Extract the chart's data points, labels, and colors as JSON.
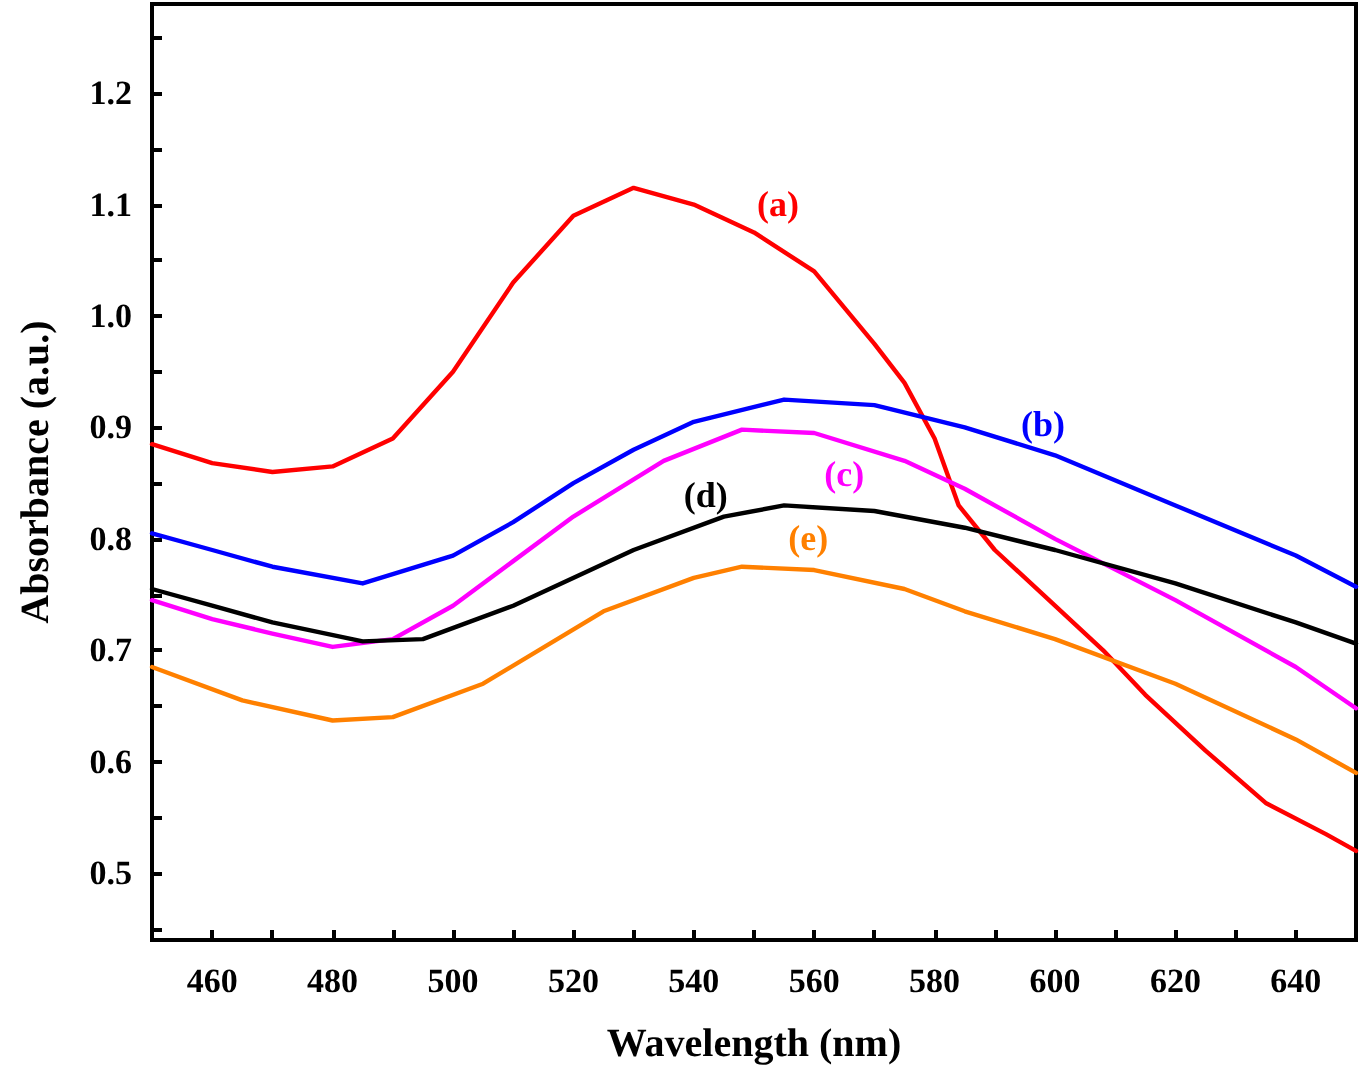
{
  "chart_data": {
    "type": "line",
    "xlabel": "Wavelength (nm)",
    "ylabel": "Absorbance (a.u.)",
    "xlim": [
      450,
      650
    ],
    "ylim": [
      0.44,
      1.28
    ],
    "xticks": [
      460,
      {
        "value": 470,
        "label": null
      },
      480,
      {
        "value": 490,
        "label": null
      },
      500,
      {
        "value": 510,
        "label": null
      },
      520,
      {
        "value": 530,
        "label": null
      },
      540,
      {
        "value": 550,
        "label": null
      },
      560,
      {
        "value": 570,
        "label": null
      },
      580,
      {
        "value": 590,
        "label": null
      },
      600,
      {
        "value": 610,
        "label": null
      },
      620,
      {
        "value": 630,
        "label": null
      },
      640
    ],
    "yticks": [
      {
        "value": 0.45,
        "label": null
      },
      0.5,
      {
        "value": 0.55,
        "label": null
      },
      0.6,
      {
        "value": 0.65,
        "label": null
      },
      0.7,
      {
        "value": 0.75,
        "label": null
      },
      0.8,
      {
        "value": 0.85,
        "label": null
      },
      0.9,
      {
        "value": 0.95,
        "label": null
      },
      {
        "value": 1,
        "label": "1.0"
      },
      {
        "value": 1.05,
        "label": null
      },
      1.1,
      {
        "value": 1.15,
        "label": null
      },
      1.2,
      {
        "value": 1.25,
        "label": null
      }
    ],
    "grid": false,
    "legend": false,
    "marker": "none",
    "line_style": "solid",
    "series": [
      {
        "name": "(a)",
        "color": "#ff0000",
        "x": [
          450,
          460,
          470,
          480,
          490,
          500,
          510,
          520,
          530,
          540,
          550,
          560,
          570,
          575,
          580,
          584,
          590,
          600,
          608,
          615,
          625,
          635,
          645,
          650
        ],
        "values": [
          0.885,
          0.868,
          0.86,
          0.865,
          0.89,
          0.95,
          1.03,
          1.09,
          1.115,
          1.1,
          1.075,
          1.04,
          0.975,
          0.94,
          0.89,
          0.83,
          0.79,
          0.74,
          0.7,
          0.66,
          0.61,
          0.563,
          0.535,
          0.52
        ]
      },
      {
        "name": "(b)",
        "color": "#0000ff",
        "x": [
          450,
          460,
          470,
          485,
          500,
          510,
          520,
          530,
          540,
          555,
          570,
          585,
          600,
          620,
          640,
          650
        ],
        "values": [
          0.805,
          0.79,
          0.775,
          0.76,
          0.785,
          0.815,
          0.85,
          0.88,
          0.905,
          0.925,
          0.92,
          0.9,
          0.875,
          0.83,
          0.785,
          0.757
        ]
      },
      {
        "name": "(c)",
        "color": "#ff00ff",
        "x": [
          450,
          460,
          470,
          480,
          490,
          500,
          510,
          520,
          535,
          548,
          560,
          575,
          585,
          600,
          620,
          640,
          650
        ],
        "values": [
          0.745,
          0.728,
          0.715,
          0.703,
          0.71,
          0.74,
          0.78,
          0.82,
          0.87,
          0.898,
          0.895,
          0.87,
          0.845,
          0.8,
          0.745,
          0.685,
          0.648
        ]
      },
      {
        "name": "(d)",
        "color": "#000000",
        "x": [
          450,
          460,
          470,
          485,
          495,
          510,
          530,
          545,
          555,
          570,
          585,
          600,
          620,
          640,
          650
        ],
        "values": [
          0.755,
          0.74,
          0.725,
          0.708,
          0.71,
          0.74,
          0.79,
          0.82,
          0.83,
          0.825,
          0.81,
          0.79,
          0.76,
          0.725,
          0.706
        ]
      },
      {
        "name": "(e)",
        "color": "#ff8000",
        "x": [
          450,
          465,
          480,
          490,
          505,
          525,
          540,
          548,
          560,
          575,
          585,
          600,
          620,
          640,
          650
        ],
        "values": [
          0.685,
          0.655,
          0.637,
          0.64,
          0.67,
          0.735,
          0.765,
          0.775,
          0.772,
          0.755,
          0.735,
          0.71,
          0.67,
          0.62,
          0.59
        ]
      }
    ]
  }
}
